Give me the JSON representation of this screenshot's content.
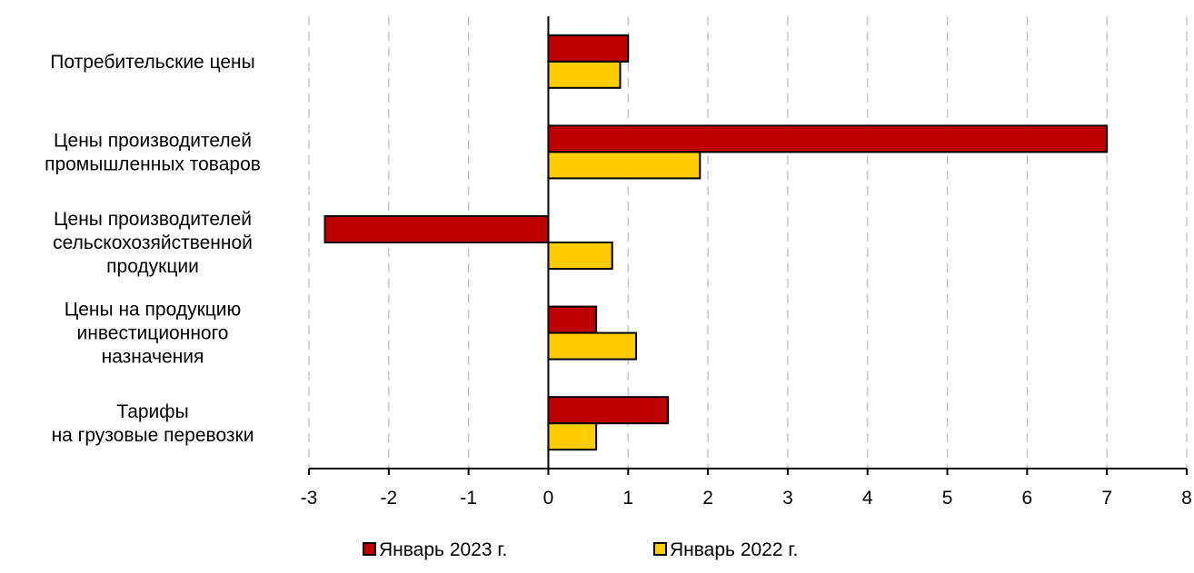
{
  "chart_data": {
    "type": "bar",
    "orientation": "horizontal",
    "categories": [
      [
        "Потребительские цены"
      ],
      [
        "Цены производителей",
        "промышленных товаров"
      ],
      [
        "Цены производителей",
        "сельскохозяйственной",
        "продукции"
      ],
      [
        "Цены на продукцию",
        "инвестиционного",
        "назначения"
      ],
      [
        "Тарифы",
        "на грузовые перевозки"
      ]
    ],
    "series": [
      {
        "name": "Январь 2023 г.",
        "color": "#c00000",
        "values": [
          1.0,
          7.0,
          -2.8,
          0.6,
          1.5
        ]
      },
      {
        "name": "Январь 2022 г.",
        "color": "#ffcc00",
        "values": [
          0.9,
          1.9,
          0.8,
          1.1,
          0.6
        ]
      }
    ],
    "xlim": [
      -3,
      8
    ],
    "xticks": [
      "-3",
      "-2",
      "-1",
      "0",
      "1",
      "2",
      "3",
      "4",
      "5",
      "6",
      "7",
      "8"
    ],
    "grid": "vertical dashed",
    "legend_position": "bottom"
  }
}
